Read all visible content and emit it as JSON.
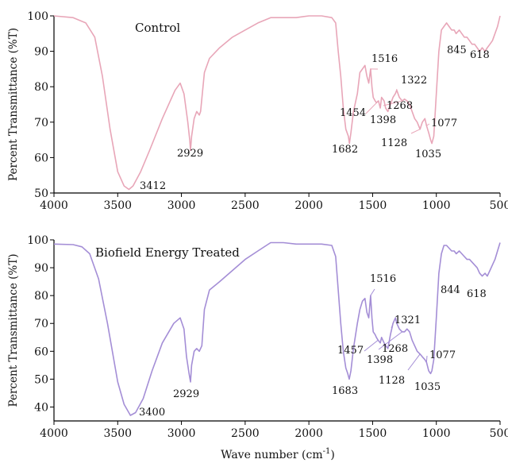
{
  "figure": {
    "xlabel_main": "Wave number (cm",
    "xlabel_sup": "-1",
    "xlabel_close": ")"
  },
  "chart_data": [
    {
      "type": "line",
      "title": "Control",
      "xlabel": "Wave number (cm-1)",
      "ylabel": "Percent Transmittance (%T)",
      "xlim": [
        4000,
        500
      ],
      "ylim": [
        50,
        100
      ],
      "x_reversed": true,
      "xticks": [
        4000,
        3500,
        3000,
        2500,
        2000,
        1500,
        1000,
        500
      ],
      "yticks": [
        50,
        60,
        70,
        80,
        90,
        100
      ],
      "grid": false,
      "color": "#e8a6b8",
      "series": [
        {
          "x": [
            4000,
            3850,
            3750,
            3680,
            3620,
            3560,
            3500,
            3450,
            3412,
            3380,
            3320,
            3250,
            3150,
            3050,
            3010,
            2980,
            2950,
            2935,
            2929,
            2920,
            2900,
            2880,
            2860,
            2850,
            2820,
            2780,
            2700,
            2600,
            2500,
            2400,
            2300,
            2200,
            2100,
            2000,
            1900,
            1820,
            1790,
            1770,
            1750,
            1730,
            1710,
            1690,
            1682,
            1670,
            1650,
            1620,
            1600,
            1580,
            1560,
            1545,
            1530,
            1516,
            1505,
            1495,
            1480,
            1470,
            1454,
            1440,
            1430,
            1410,
            1398,
            1380,
            1360,
            1340,
            1322,
            1310,
            1290,
            1268,
            1250,
            1230,
            1210,
            1190,
            1170,
            1150,
            1128,
            1110,
            1090,
            1077,
            1060,
            1045,
            1035,
            1020,
            1000,
            980,
            960,
            940,
            920,
            900,
            880,
            860,
            845,
            820,
            800,
            780,
            760,
            740,
            720,
            700,
            680,
            660,
            640,
            618,
            600,
            580,
            560,
            540,
            520,
            500
          ],
          "y": [
            100,
            99.5,
            98,
            94,
            83,
            68,
            56,
            52,
            51,
            52,
            56,
            62,
            71,
            79,
            81,
            78,
            70,
            65,
            62,
            66,
            71,
            73,
            72,
            73,
            84,
            88,
            91,
            94,
            96,
            98,
            99.5,
            99.5,
            99.5,
            100,
            100,
            99.5,
            98,
            90,
            83,
            74,
            68,
            66,
            64,
            67,
            73,
            78,
            84,
            85,
            86,
            83,
            81,
            85,
            80,
            77,
            76,
            75.5,
            76,
            74,
            77,
            76,
            74,
            73,
            75,
            77,
            78,
            79,
            77,
            76,
            76.5,
            76,
            75,
            73,
            71,
            70,
            68,
            70,
            71,
            69,
            67,
            65,
            64,
            66,
            78,
            90,
            96,
            97,
            98,
            97,
            96,
            96,
            95,
            96,
            95,
            94,
            94,
            93,
            92,
            92,
            91,
            90,
            91,
            90,
            91,
            92,
            93,
            95,
            97,
            100
          ]
        }
      ],
      "annotations": [
        "3412",
        "2929",
        "1682",
        "1516",
        "1454",
        "1398",
        "1322",
        "1268",
        "1128",
        "1077",
        "1035",
        "845",
        "618"
      ]
    },
    {
      "type": "line",
      "title": "Biofield Energy Treated",
      "xlabel": "Wave number (cm-1)",
      "ylabel": "Percent Transmittance (%T)",
      "xlim": [
        4000,
        500
      ],
      "ylim": [
        35,
        100
      ],
      "x_reversed": true,
      "xticks": [
        4000,
        3500,
        3000,
        2500,
        2000,
        1500,
        1000,
        500
      ],
      "yticks": [
        40,
        50,
        60,
        70,
        80,
        90,
        100
      ],
      "grid": false,
      "color": "#a48ed6",
      "series": [
        {
          "x": [
            4000,
            3850,
            3780,
            3720,
            3650,
            3580,
            3500,
            3450,
            3400,
            3360,
            3300,
            3230,
            3150,
            3060,
            3010,
            2980,
            2960,
            2940,
            2929,
            2920,
            2900,
            2880,
            2860,
            2840,
            2820,
            2780,
            2700,
            2600,
            2500,
            2400,
            2300,
            2200,
            2100,
            2000,
            1900,
            1820,
            1790,
            1770,
            1750,
            1730,
            1710,
            1695,
            1683,
            1670,
            1650,
            1620,
            1600,
            1580,
            1560,
            1545,
            1530,
            1516,
            1505,
            1495,
            1480,
            1470,
            1457,
            1440,
            1430,
            1410,
            1398,
            1380,
            1360,
            1340,
            1321,
            1310,
            1290,
            1268,
            1250,
            1230,
            1210,
            1190,
            1170,
            1150,
            1128,
            1110,
            1090,
            1077,
            1060,
            1045,
            1035,
            1020,
            1000,
            980,
            960,
            940,
            920,
            900,
            880,
            860,
            844,
            820,
            800,
            780,
            760,
            740,
            720,
            700,
            680,
            660,
            640,
            618,
            600,
            580,
            560,
            540,
            520,
            500
          ],
          "y": [
            98.5,
            98.3,
            97.5,
            95,
            86,
            70,
            49,
            41,
            37,
            38,
            43,
            53,
            63,
            70,
            72,
            68,
            58,
            52,
            49,
            55,
            60,
            61,
            60,
            62,
            75,
            82,
            85,
            89,
            93,
            96,
            99,
            99,
            98.5,
            98.5,
            98.5,
            98,
            94,
            82,
            70,
            60,
            54,
            52,
            50,
            53,
            61,
            70,
            75,
            78,
            79,
            74,
            72,
            80,
            72,
            67,
            66,
            65,
            64,
            63,
            65,
            63,
            62,
            61,
            66,
            70,
            72,
            70,
            68,
            67,
            67,
            68,
            67,
            64,
            62,
            60,
            59,
            58,
            57,
            56,
            53,
            52,
            53,
            57,
            72,
            88,
            95,
            98,
            98,
            97,
            96,
            96,
            95,
            96,
            95,
            94,
            93,
            93,
            92,
            91,
            90,
            88,
            87,
            88,
            87,
            89,
            91,
            93,
            96,
            99
          ]
        }
      ],
      "annotations": [
        "3400",
        "2929",
        "1683",
        "1516",
        "1457",
        "1398",
        "1321",
        "1268",
        "1128",
        "1077",
        "1035",
        "844",
        "618"
      ]
    }
  ]
}
